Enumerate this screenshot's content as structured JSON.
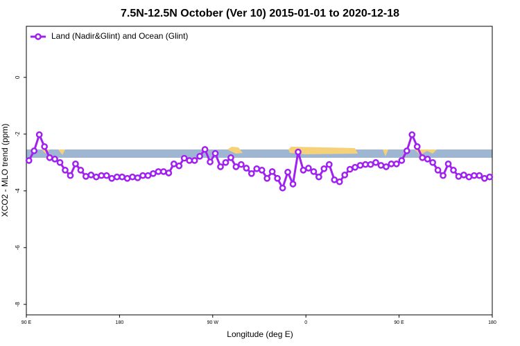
{
  "chart_data": {
    "type": "line",
    "title": "7.5N-12.5N October (Ver 10)   2015-01-01 to 2020-12-18",
    "xlabel": "Longitude (deg E)",
    "ylabel": "XCO2 - MLO trend (ppm)",
    "x": [
      92.5,
      97.5,
      102.5,
      107.5,
      112.5,
      117.5,
      122.5,
      127.5,
      132.5,
      137.5,
      142.5,
      147.5,
      152.5,
      157.5,
      162.5,
      167.5,
      172.5,
      177.5,
      182.5,
      187.5,
      192.5,
      197.5,
      202.5,
      207.5,
      212.5,
      217.5,
      222.5,
      227.5,
      232.5,
      237.5,
      242.5,
      247.5,
      252.5,
      257.5,
      262.5,
      267.5,
      272.5,
      277.5,
      282.5,
      287.5,
      292.5,
      297.5,
      302.5,
      307.5,
      312.5,
      317.5,
      322.5,
      327.5,
      332.5,
      337.5,
      342.5,
      347.5,
      352.5,
      357.5,
      362.5,
      367.5,
      372.5,
      377.5,
      382.5,
      387.5,
      392.5,
      397.5,
      402.5,
      407.5,
      412.5,
      417.5,
      422.5,
      427.5,
      432.5,
      437.5,
      442.5,
      447.5,
      452.5,
      457.5,
      462.5,
      467.5,
      472.5,
      477.5,
      482.5,
      487.5,
      492.5,
      497.5,
      502.5,
      507.5,
      512.5,
      517.5,
      522.5,
      527.5,
      532.5,
      537.5
    ],
    "series": [
      {
        "name": "Land (Nadir&Glint) and Ocean (Glint)",
        "color": "#a020f0",
        "values": [
          -2.93,
          -2.59,
          -2.02,
          -2.44,
          -2.83,
          -2.88,
          -3.0,
          -3.27,
          -3.46,
          -3.05,
          -3.27,
          -3.49,
          -3.44,
          -3.51,
          -3.46,
          -3.46,
          -3.56,
          -3.51,
          -3.51,
          -3.56,
          -3.51,
          -3.54,
          -3.46,
          -3.46,
          -3.39,
          -3.32,
          -3.32,
          -3.37,
          -3.05,
          -3.12,
          -2.85,
          -2.93,
          -2.93,
          -2.78,
          -2.54,
          -2.98,
          -2.68,
          -3.15,
          -3.0,
          -2.83,
          -3.15,
          -3.07,
          -3.2,
          -3.39,
          -3.22,
          -3.27,
          -3.56,
          -3.32,
          -3.56,
          -3.9,
          -3.34,
          -3.76,
          -2.63,
          -3.27,
          -3.2,
          -3.32,
          -3.51,
          -3.22,
          -3.07,
          -3.61,
          -3.68,
          -3.44,
          -3.24,
          -3.17,
          -3.1,
          -3.07,
          -3.07,
          -3.0,
          -3.1,
          -3.15,
          -3.05,
          -3.05,
          -2.93,
          -2.59,
          -2.02,
          -2.44,
          -2.83,
          -2.88,
          -3.0,
          -3.27,
          -3.46,
          -3.05,
          -3.27,
          -3.49,
          -3.44,
          -3.51,
          -3.46,
          -3.46,
          -3.56,
          -3.51
        ]
      }
    ],
    "xlim": [
      90,
      540
    ],
    "xticks": [
      {
        "value": 90,
        "label": "90 E"
      },
      180,
      {
        "value": 270,
        "label": "90 W"
      },
      {
        "value": 360,
        "label": "0"
      },
      {
        "value": 450,
        "label": "90 E"
      },
      180
    ],
    "ylim": [
      -8.37,
      1.8
    ],
    "yticks": [
      0,
      -2,
      -4,
      -6,
      -8
    ],
    "legend": "topleft"
  }
}
